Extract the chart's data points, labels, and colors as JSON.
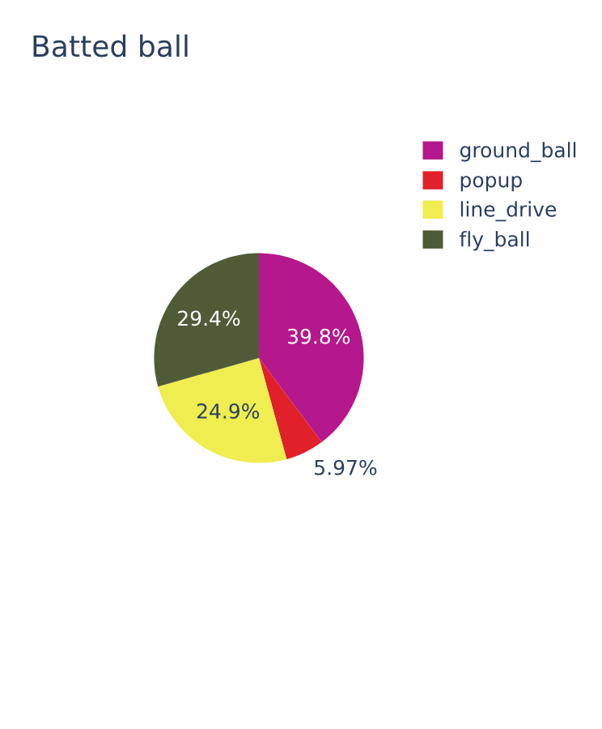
{
  "chart_data": {
    "type": "pie",
    "title": "Batted ball",
    "categories": [
      "ground_ball",
      "popup",
      "line_drive",
      "fly_ball"
    ],
    "values": [
      39.8,
      5.97,
      24.9,
      29.4
    ],
    "colors": [
      "#b5178c",
      "#e0212a",
      "#efed4f",
      "#4f5b37"
    ],
    "value_labels": [
      "39.8%",
      "5.97%",
      "24.9%",
      "29.4%"
    ],
    "legend": "top right"
  }
}
